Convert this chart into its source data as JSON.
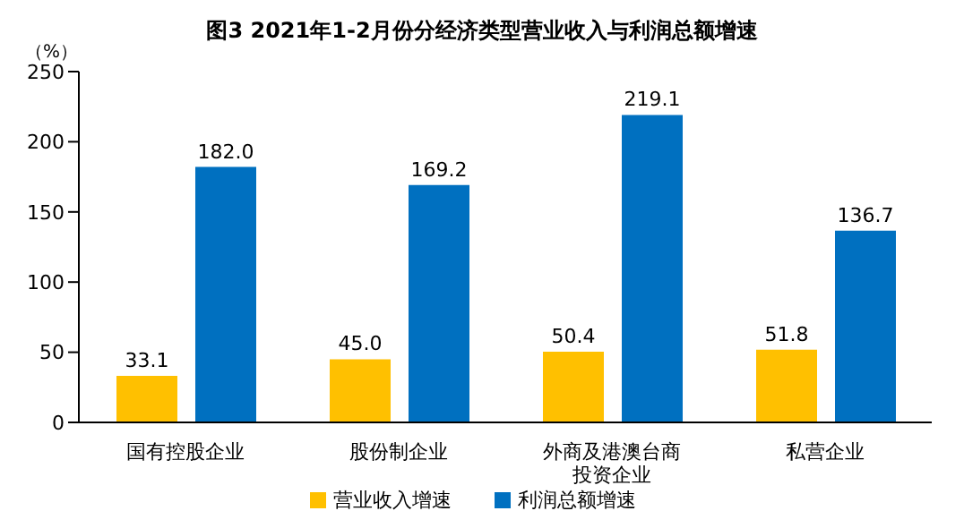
{
  "chart_data": {
    "type": "bar",
    "title": "图3 2021年1-2月份分经济类型营业收入与利润总额增速",
    "ylabel": "（%）",
    "categories": [
      "国有控股企业",
      "股份制企业",
      "外商及港澳台商投资企业",
      "私营企业"
    ],
    "series": [
      {
        "name": "营业收入增速",
        "color": "#ffc000",
        "values": [
          33.1,
          45.0,
          50.4,
          51.8
        ],
        "value_labels": [
          "33.1",
          "45.0",
          "50.4",
          "51.8"
        ]
      },
      {
        "name": "利润总额增速",
        "color": "#0070c0",
        "values": [
          182.0,
          169.2,
          219.1,
          136.7
        ],
        "value_labels": [
          "182.0",
          "169.2",
          "219.1",
          "136.7"
        ]
      }
    ],
    "ylim": [
      0,
      250
    ],
    "yticks": [
      0,
      50,
      100,
      150,
      200,
      250
    ],
    "grid": false,
    "legend": "bottom"
  }
}
